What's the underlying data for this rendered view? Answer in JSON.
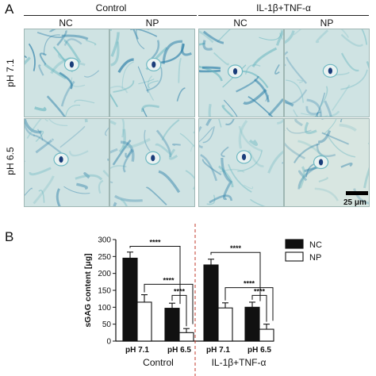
{
  "panel_a": {
    "label": "A",
    "group_headers": [
      "Control",
      "IL-1β+TNF-α"
    ],
    "column_headers": [
      "NC",
      "NP",
      "NC",
      "NP"
    ],
    "row_labels": [
      "pH 7.1",
      "pH 6.5"
    ],
    "scale_bar_label": "25 μm",
    "stain_colors": {
      "light": "#cfe3e3",
      "mid": "#6fb9c2",
      "dark": "#2c7fa8",
      "cell": "#1a3d7a"
    }
  },
  "panel_b": {
    "label": "B",
    "legend": [
      "NC",
      "NP"
    ],
    "significance_label": "****",
    "colors": {
      "NC": "#111111",
      "NP": "#ffffff",
      "divider": "#c0392b"
    }
  },
  "chart_data": {
    "type": "bar",
    "ylabel": "sGAG content [μg]",
    "ylim": [
      0,
      300
    ],
    "yticks": [
      0,
      50,
      100,
      150,
      200,
      250,
      300
    ],
    "group_labels": [
      "Control",
      "IL-1β+TNF-α"
    ],
    "categories": [
      "pH 7.1",
      "pH 6.5",
      "pH 7.1",
      "pH 6.5"
    ],
    "series": [
      {
        "name": "NC",
        "values": [
          245,
          97,
          225,
          100
        ],
        "errors": [
          18,
          15,
          17,
          15
        ]
      },
      {
        "name": "NP",
        "values": [
          115,
          25,
          98,
          35
        ],
        "errors": [
          22,
          12,
          15,
          15
        ]
      }
    ],
    "significance": [
      {
        "label": "****",
        "between": "Control NC pH 7.1 vs NP pH 7.1 / NC pH 6.5"
      },
      {
        "label": "****",
        "between": "Control NP pH 7.1 vs NP pH 6.5"
      },
      {
        "label": "****",
        "between": "Control NC pH 6.5 vs NP pH 6.5"
      },
      {
        "label": "****",
        "between": "IL NC pH 7.1 vs NP pH 7.1 / NC pH 6.5"
      },
      {
        "label": "****",
        "between": "IL NP pH 7.1 vs NP pH 6.5"
      },
      {
        "label": "****",
        "between": "IL NC pH 6.5 vs NP pH 6.5"
      }
    ]
  }
}
